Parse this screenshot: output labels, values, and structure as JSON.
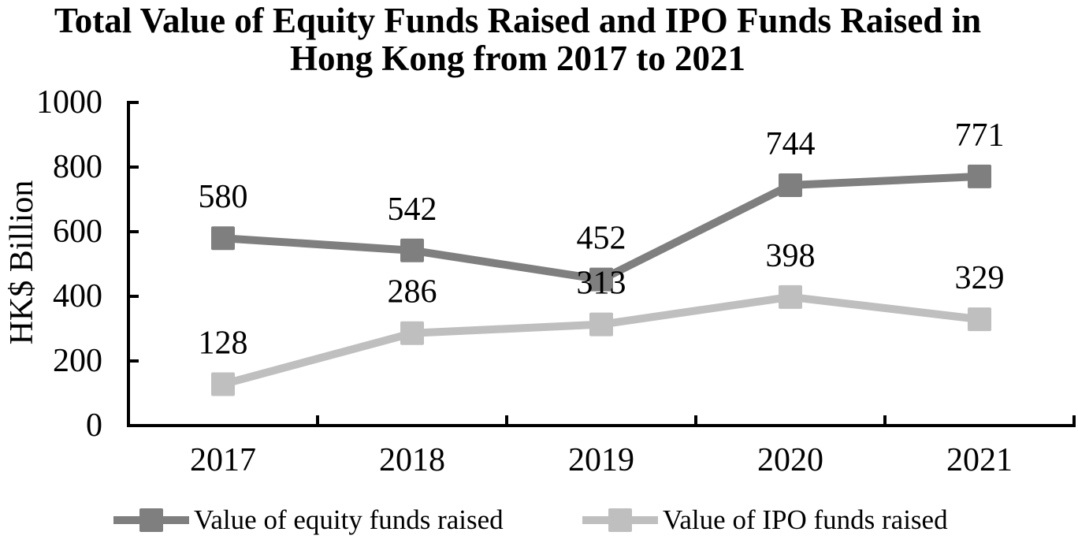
{
  "chart_data": {
    "type": "line",
    "title": "Total Value of Equity Funds Raised and IPO Funds Raised in Hong Kong from 2017 to 2021",
    "title_lines": [
      "Total Value of Equity Funds Raised and IPO Funds Raised in",
      "Hong Kong from 2017 to 2021"
    ],
    "ylabel": "HK$ Billion",
    "xlabel": "",
    "categories": [
      "2017",
      "2018",
      "2019",
      "2020",
      "2021"
    ],
    "series": [
      {
        "name": "Value of equity funds raised",
        "values": [
          580,
          542,
          452,
          744,
          771
        ],
        "color": "#7f7f7f"
      },
      {
        "name": "Value of IPO funds raised",
        "values": [
          128,
          286,
          313,
          398,
          329
        ],
        "color": "#bfbfbf"
      }
    ],
    "ylim": [
      0,
      1000
    ],
    "yticks": [
      0,
      200,
      400,
      600,
      800,
      1000
    ],
    "grid": false,
    "data_labels": true,
    "legend_position": "bottom",
    "axis_color": "#000000",
    "background": "#ffffff"
  }
}
